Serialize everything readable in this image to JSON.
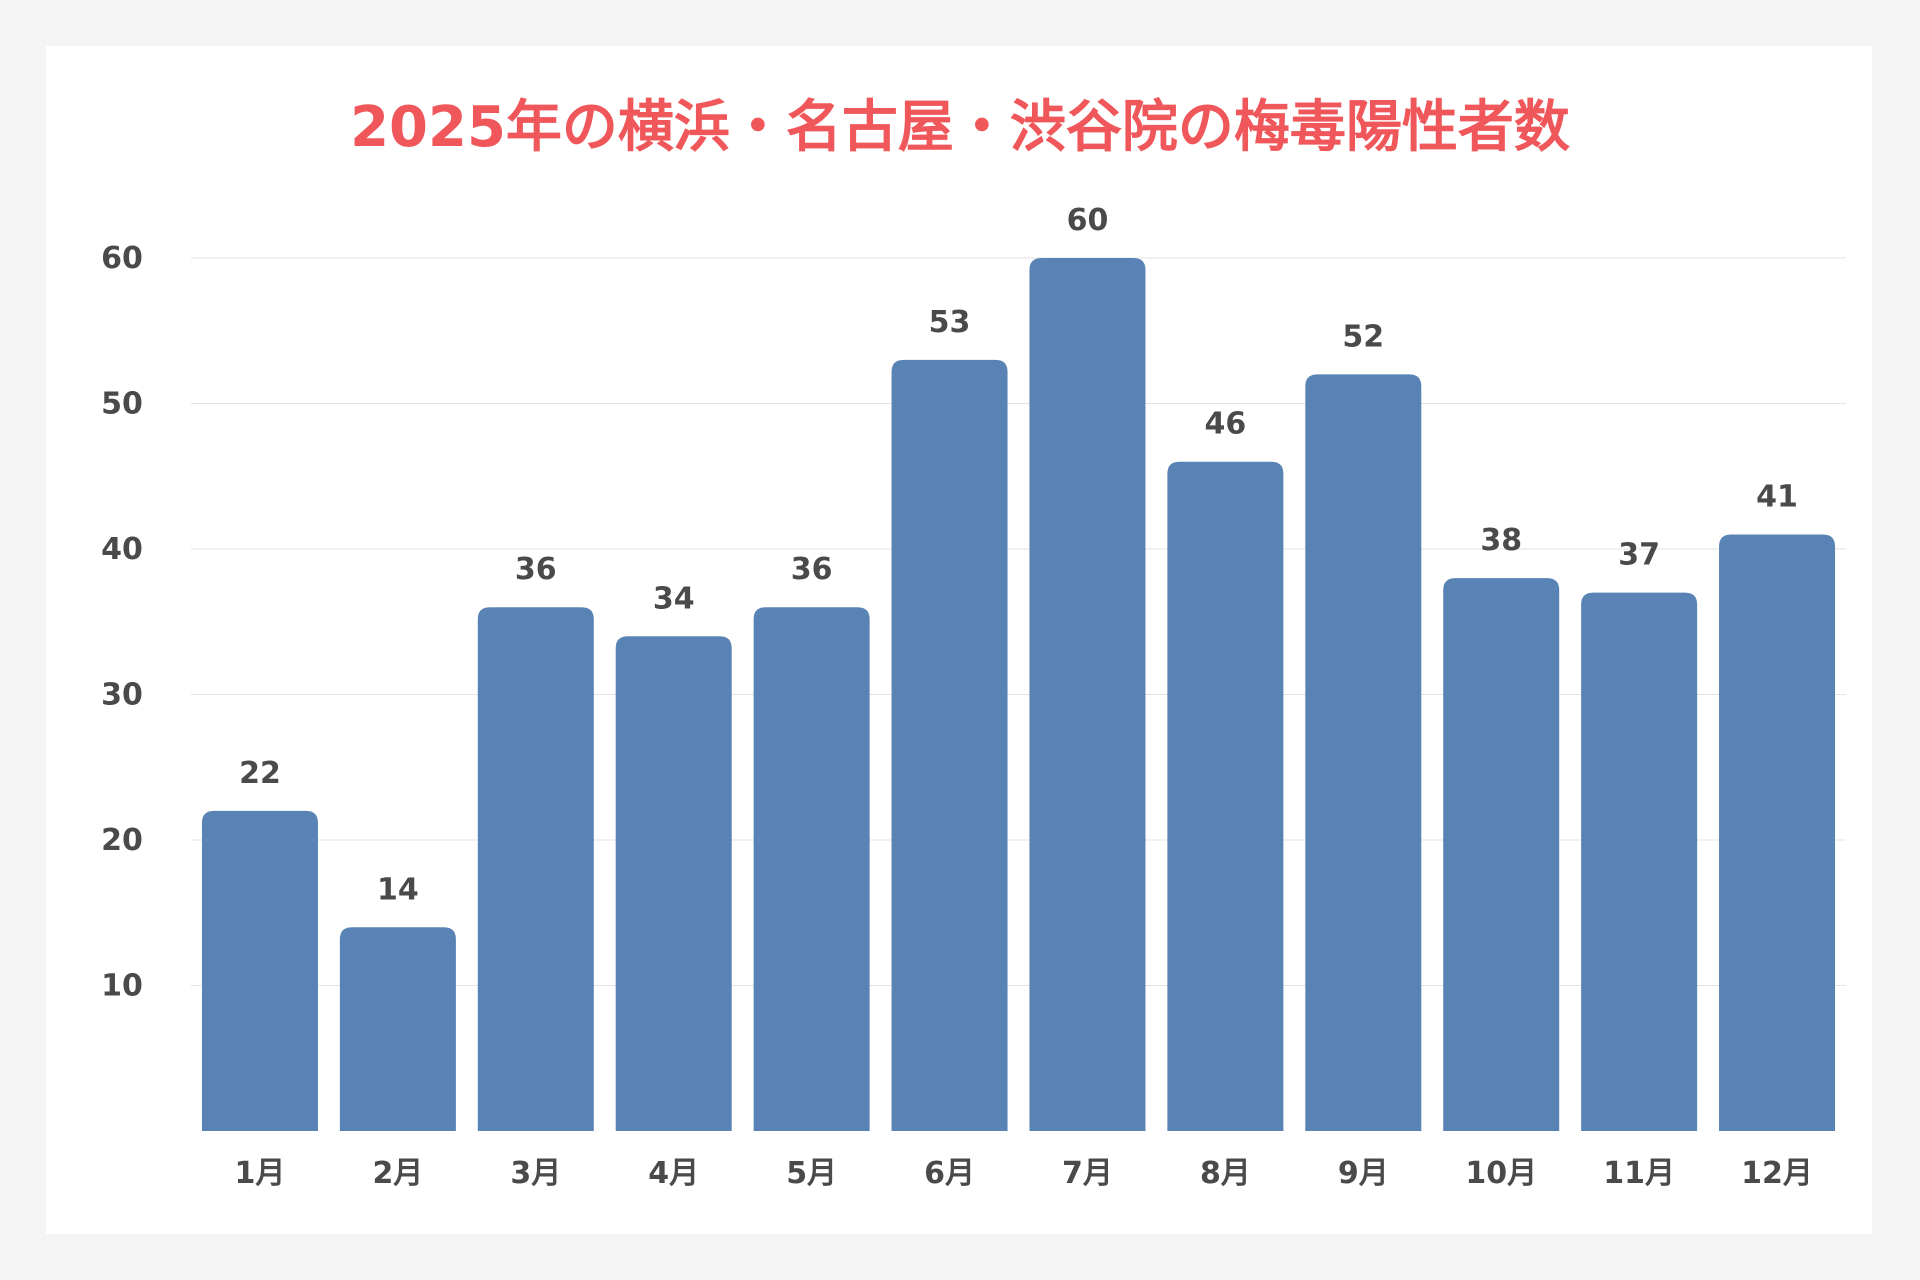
{
  "chart_data": {
    "type": "bar",
    "title": "2025年の横浜・名古屋・渋谷院の梅毒陽性者数",
    "xlabel": "",
    "ylabel": "",
    "categories": [
      "1月",
      "2月",
      "3月",
      "4月",
      "5月",
      "6月",
      "7月",
      "8月",
      "9月",
      "10月",
      "11月",
      "12月"
    ],
    "values": [
      22,
      14,
      36,
      34,
      36,
      53,
      60,
      46,
      52,
      38,
      37,
      41
    ],
    "ylim": [
      0,
      60
    ],
    "yticks": [
      10,
      20,
      30,
      40,
      50,
      60
    ],
    "grid": true,
    "legend": "none",
    "data_labels": true
  },
  "colors": {
    "bar": "#5983b4",
    "title": "#f0575a",
    "grid": "#e3e3e3",
    "text": "#4a4a4a",
    "background": "#f5f5f5",
    "card": "#ffffff"
  }
}
